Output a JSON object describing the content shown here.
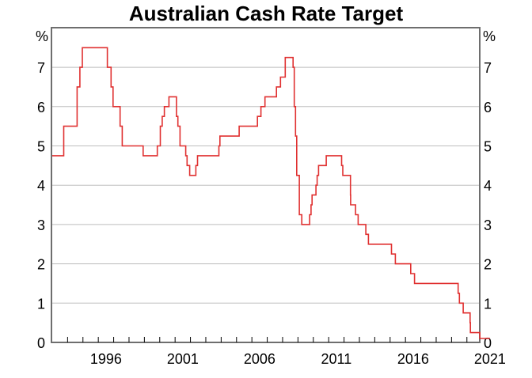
{
  "chart_data": {
    "type": "line",
    "title": "Australian Cash Rate Target",
    "xlabel": "",
    "ylabel": "%",
    "y_unit_left": "%",
    "y_unit_right": "%",
    "ylim": [
      0,
      7.75
    ],
    "yticks": [
      0,
      1,
      2,
      3,
      4,
      5,
      6,
      7
    ],
    "xlim": [
      1993.0,
      2021.9
    ],
    "xtick_labels": [
      "1996",
      "2001",
      "2006",
      "2011",
      "2016",
      "2021"
    ],
    "xtick_label_positions": [
      1996.5,
      2001.5,
      2006.5,
      2011.5,
      2016.5,
      2021.5
    ],
    "minor_ticks_every_year": true,
    "grid": "horizontal",
    "line_color": "#e03030",
    "step": true,
    "series": [
      {
        "name": "Cash Rate Target",
        "x": [
          1993.0,
          1993.75,
          1994.62,
          1994.8,
          1994.96,
          1996.59,
          1996.83,
          1996.96,
          1997.15,
          1997.42,
          1997.56,
          1998.92,
          1999.84,
          2000.04,
          2000.16,
          2000.3,
          2000.6,
          2001.09,
          2001.18,
          2001.32,
          2001.69,
          2001.78,
          2001.95,
          2002.35,
          2002.46,
          2003.85,
          2003.92,
          2005.17,
          2006.36,
          2006.59,
          2006.85,
          2007.6,
          2007.86,
          2008.17,
          2008.68,
          2008.76,
          2008.84,
          2008.92,
          2009.09,
          2009.25,
          2009.76,
          2009.85,
          2009.92,
          2010.17,
          2010.25,
          2010.34,
          2010.84,
          2011.84,
          2011.92,
          2012.42,
          2012.43,
          2012.75,
          2012.92,
          2013.42,
          2013.59,
          2015.09,
          2015.34,
          2016.34,
          2016.59,
          2019.43,
          2019.51,
          2019.76,
          2020.21,
          2020.23,
          2020.84,
          2021.5
        ],
        "y": [
          4.75,
          5.5,
          6.5,
          7.0,
          7.5,
          7.0,
          6.5,
          6.0,
          6.0,
          5.5,
          5.0,
          4.75,
          5.0,
          5.5,
          5.75,
          6.0,
          6.25,
          5.75,
          5.5,
          5.0,
          4.75,
          4.5,
          4.25,
          4.5,
          4.75,
          5.0,
          5.25,
          5.5,
          5.75,
          6.0,
          6.25,
          6.5,
          6.75,
          7.25,
          7.0,
          6.0,
          5.25,
          4.25,
          3.25,
          3.0,
          3.25,
          3.5,
          3.75,
          4.0,
          4.25,
          4.5,
          4.75,
          4.5,
          4.25,
          3.75,
          3.5,
          3.25,
          3.0,
          2.75,
          2.5,
          2.25,
          2.0,
          1.75,
          1.5,
          1.25,
          1.0,
          0.75,
          0.5,
          0.25,
          0.1,
          0.1
        ]
      }
    ]
  }
}
